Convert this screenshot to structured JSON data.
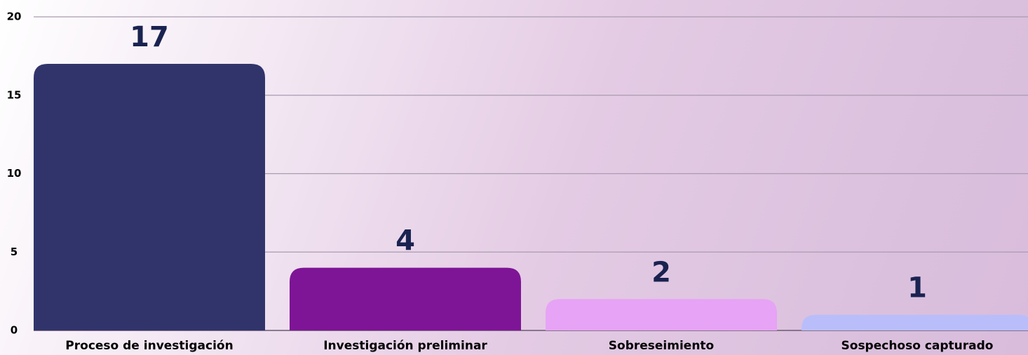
{
  "chart_data": {
    "type": "bar",
    "categories": [
      "Proceso de investigación",
      "Investigación preliminar",
      "Sobreseimiento",
      "Sospechoso capturado"
    ],
    "values": [
      17,
      4,
      2,
      1
    ],
    "colors": [
      "#31346b",
      "#7e1596",
      "#e7a3f5",
      "#b9befa"
    ],
    "ylim": [
      0,
      20
    ],
    "yticks": [
      0,
      5,
      10,
      15,
      20
    ],
    "grid": true
  }
}
